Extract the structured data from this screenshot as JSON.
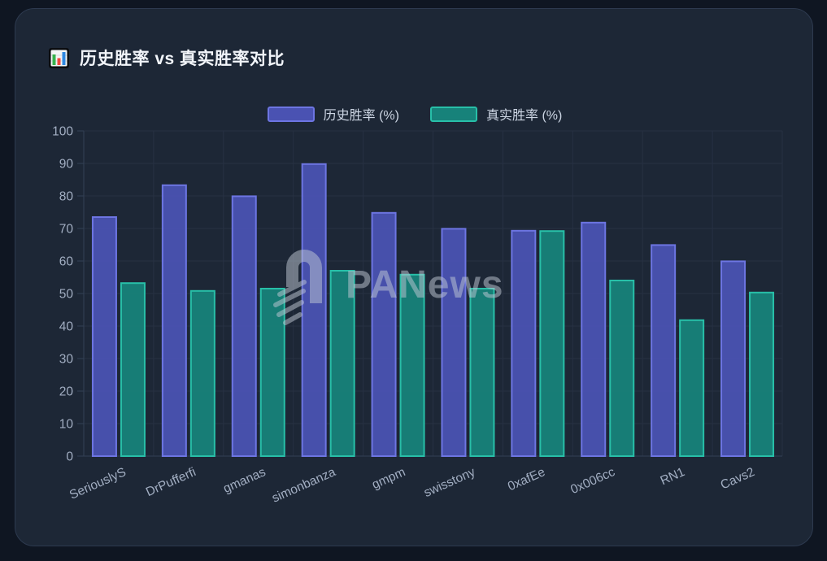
{
  "window": {
    "background": "#0f1622",
    "card_background": "#1d2736",
    "card_border": "#2d3a4f"
  },
  "header": {
    "icon": "bar-chart-emoji",
    "title": "历史胜率 vs 真实胜率对比"
  },
  "watermark": {
    "logo": "panews-logo",
    "text": "PANews"
  },
  "chart_data": {
    "type": "bar",
    "title": "历史胜率 vs 真实胜率对比",
    "categories": [
      "SeriouslyS",
      "DrPufferfi",
      "gmanas",
      "simonbanza",
      "gmpm",
      "swisstony",
      "0xafEe",
      "0x006cc",
      "RN1",
      "Cavs2"
    ],
    "series": [
      {
        "name": "历史胜率 (%)",
        "values": [
          73.5,
          83.3,
          79.9,
          89.8,
          74.8,
          69.9,
          69.3,
          71.8,
          64.9,
          59.9
        ],
        "fill": "#4a52b2",
        "border": "#6d75e2"
      },
      {
        "name": "真实胜率 (%)",
        "values": [
          53.2,
          50.8,
          51.5,
          57.0,
          55.8,
          51.5,
          69.2,
          54.0,
          41.8,
          50.3
        ],
        "fill": "#17827a",
        "border": "#28bfa8"
      }
    ],
    "xlabel": "",
    "ylabel": "",
    "ylim": [
      0,
      100
    ],
    "yticks": [
      0,
      10,
      20,
      30,
      40,
      50,
      60,
      70,
      80,
      90,
      100
    ],
    "grid": true,
    "legend_position": "top",
    "x_label_rotation": -24,
    "watermark": "PANews"
  }
}
